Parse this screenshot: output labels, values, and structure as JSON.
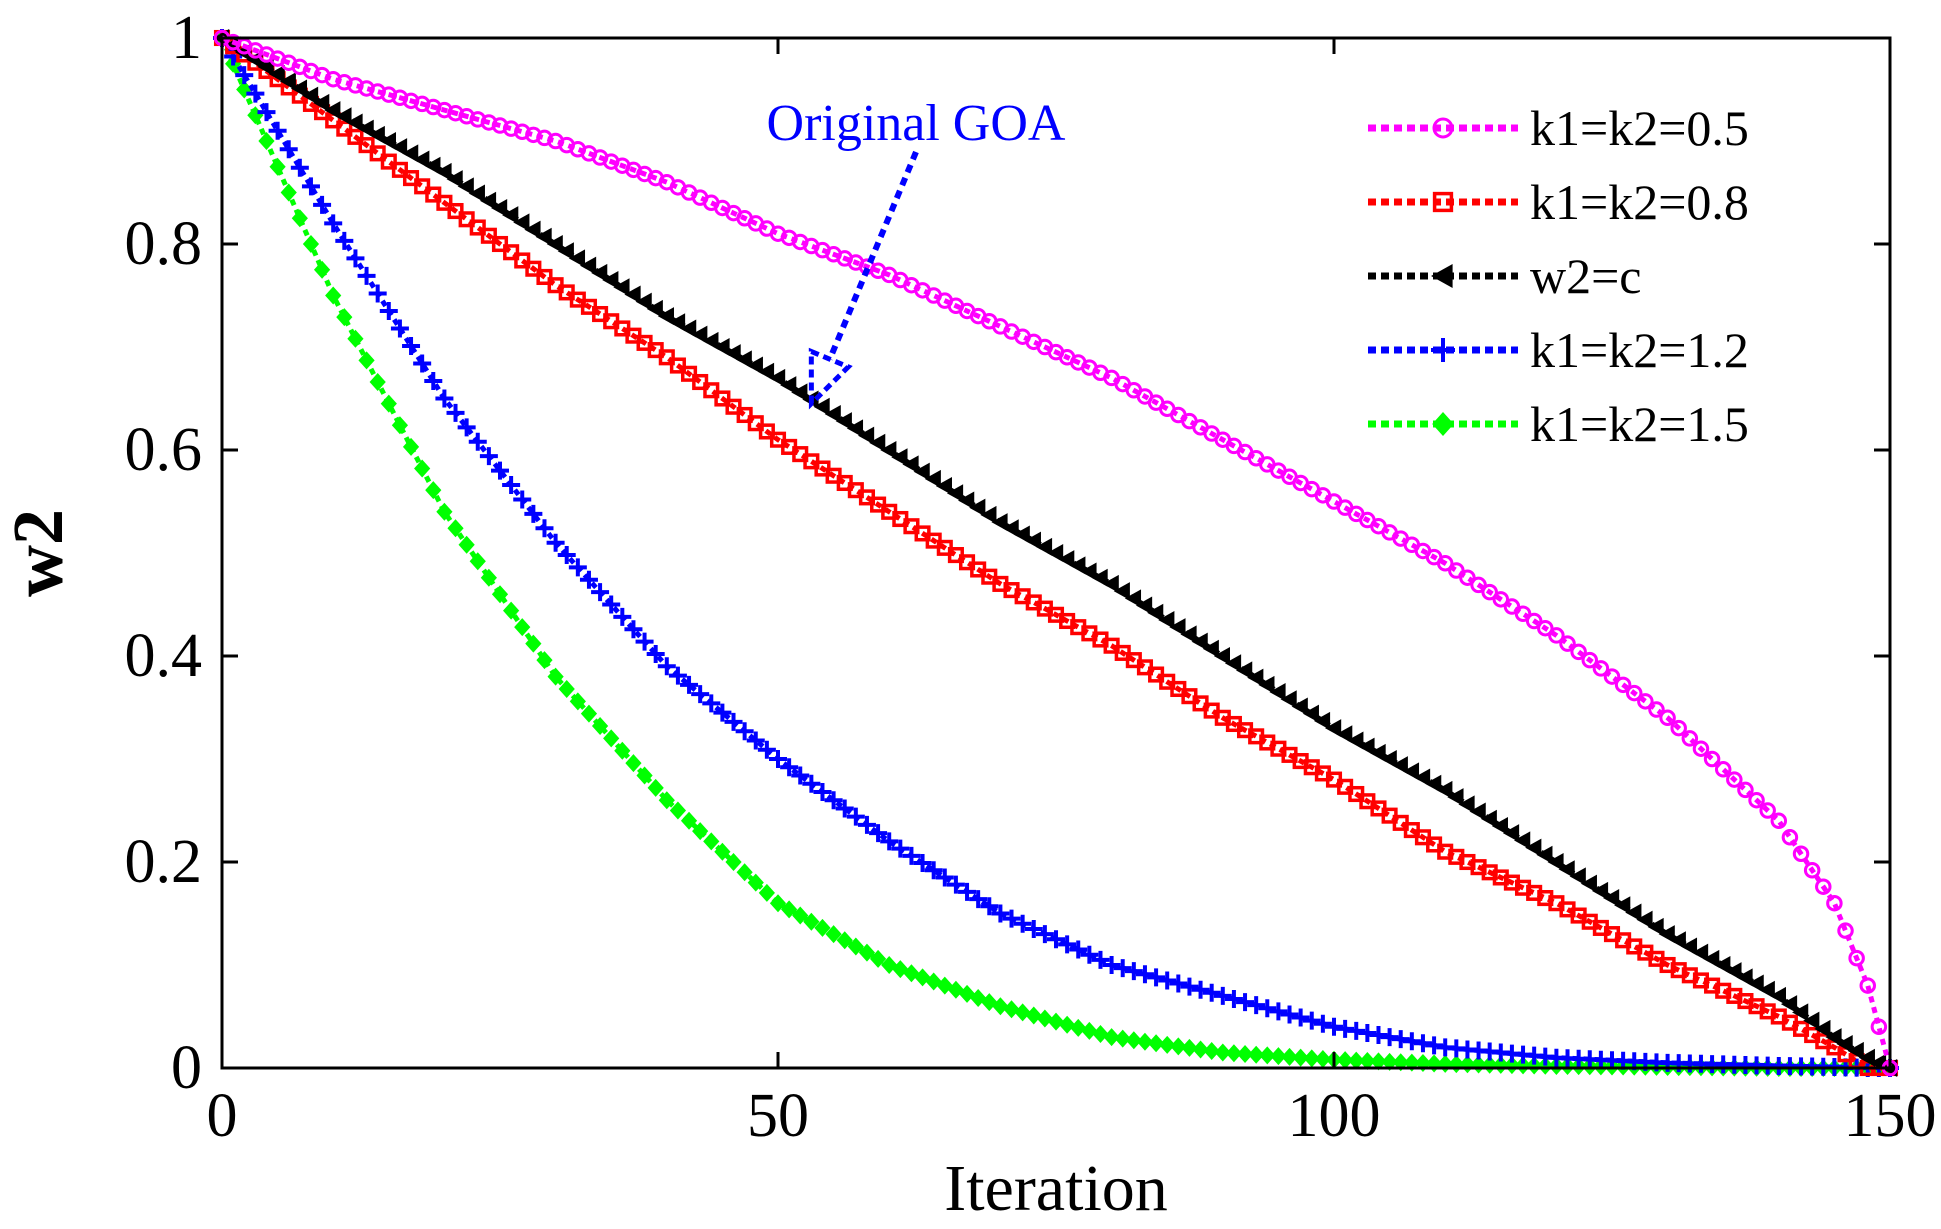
{
  "chart_data": {
    "type": "line",
    "title": "",
    "xlabel": "Iteration",
    "ylabel": "w2",
    "xlim": [
      0,
      150
    ],
    "ylim": [
      0,
      1
    ],
    "xticks": [
      "0",
      "50",
      "100",
      "150"
    ],
    "yticks": [
      "0",
      "0.2",
      "0.4",
      "0.6",
      "0.8",
      "1"
    ],
    "grid": false,
    "legend_position": "top-right",
    "x": [
      0,
      10,
      20,
      30,
      40,
      50,
      60,
      70,
      80,
      90,
      100,
      110,
      120,
      130,
      140,
      145,
      148,
      150
    ],
    "series": [
      {
        "name": "k1=k2=0.5",
        "color": "#ff00ff",
        "marker": "circle",
        "values": [
          1.0,
          0.96,
          0.93,
          0.9,
          0.86,
          0.81,
          0.77,
          0.72,
          0.67,
          0.61,
          0.55,
          0.49,
          0.42,
          0.34,
          0.24,
          0.16,
          0.08,
          0.0
        ]
      },
      {
        "name": "k1=k2=0.8",
        "color": "#ff0000",
        "marker": "square",
        "values": [
          1.0,
          0.92,
          0.84,
          0.76,
          0.69,
          0.61,
          0.54,
          0.47,
          0.41,
          0.34,
          0.28,
          0.21,
          0.16,
          0.1,
          0.05,
          0.02,
          0.0,
          0.0
        ]
      },
      {
        "name": "w2=c",
        "color": "#000000",
        "marker": "triangle-left",
        "values": [
          1.0,
          0.93,
          0.87,
          0.8,
          0.73,
          0.67,
          0.6,
          0.53,
          0.47,
          0.4,
          0.33,
          0.27,
          0.2,
          0.13,
          0.07,
          0.03,
          0.01,
          0.0
        ]
      },
      {
        "name": "k1=k2=1.2",
        "color": "#0000ff",
        "marker": "plus",
        "values": [
          1.0,
          0.82,
          0.65,
          0.51,
          0.39,
          0.3,
          0.22,
          0.15,
          0.1,
          0.07,
          0.04,
          0.02,
          0.01,
          0.005,
          0.002,
          0.001,
          0.0,
          0.0
        ]
      },
      {
        "name": "k1=k2=1.5",
        "color": "#00ff00",
        "marker": "diamond",
        "values": [
          1.0,
          0.75,
          0.54,
          0.38,
          0.26,
          0.16,
          0.1,
          0.06,
          0.03,
          0.015,
          0.008,
          0.004,
          0.002,
          0.001,
          0.0,
          0.0,
          0.0,
          0.0
        ]
      }
    ],
    "annotation": {
      "text": "Original GOA",
      "color": "#0000ff",
      "points_to_series": "w2=c",
      "points_to_x": 53
    }
  }
}
